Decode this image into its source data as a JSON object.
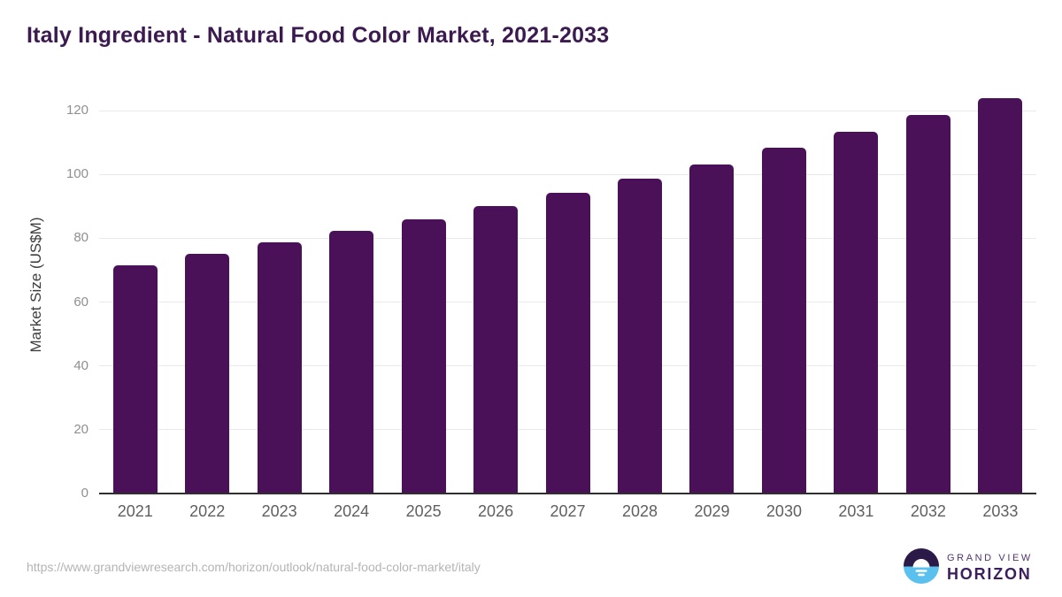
{
  "chart_data": {
    "type": "bar",
    "title": "Italy Ingredient - Natural Food Color Market, 2021-2033",
    "xlabel": "",
    "ylabel": "Market Size (US$M)",
    "categories": [
      "2021",
      "2022",
      "2023",
      "2024",
      "2025",
      "2026",
      "2027",
      "2028",
      "2029",
      "2030",
      "2031",
      "2032",
      "2033"
    ],
    "values": [
      71.6,
      75.0,
      78.6,
      82.2,
      85.9,
      90.0,
      94.1,
      98.6,
      103.2,
      108.4,
      113.4,
      118.6,
      123.9
    ],
    "ylim": [
      0,
      128
    ],
    "yticks": [
      0,
      20,
      40,
      60,
      80,
      100,
      120
    ],
    "grid": true,
    "legend": false,
    "bar_color": "#4a1158"
  },
  "footer": {
    "source_url": "https://www.grandviewresearch.com/horizon/outlook/natural-food-color-market/italy",
    "logo": {
      "top_text": "GRAND VIEW",
      "bottom_text": "HORIZON"
    }
  },
  "colors": {
    "title": "#3b1a50",
    "bar": "#4a1158",
    "gridline": "#e9e9e9",
    "axis_line": "#2f2f2f",
    "y_tick_label": "#8f8f8f",
    "x_tick_label": "#5f5f5f",
    "y_axis_title": "#3d3d3d",
    "url_text": "#b4b4b4",
    "logo_dark_half": "#2b1a47",
    "logo_blue_half": "#5ac0ed",
    "logo_text_top": "#51356d",
    "logo_text_bottom": "#3a1f5c"
  }
}
